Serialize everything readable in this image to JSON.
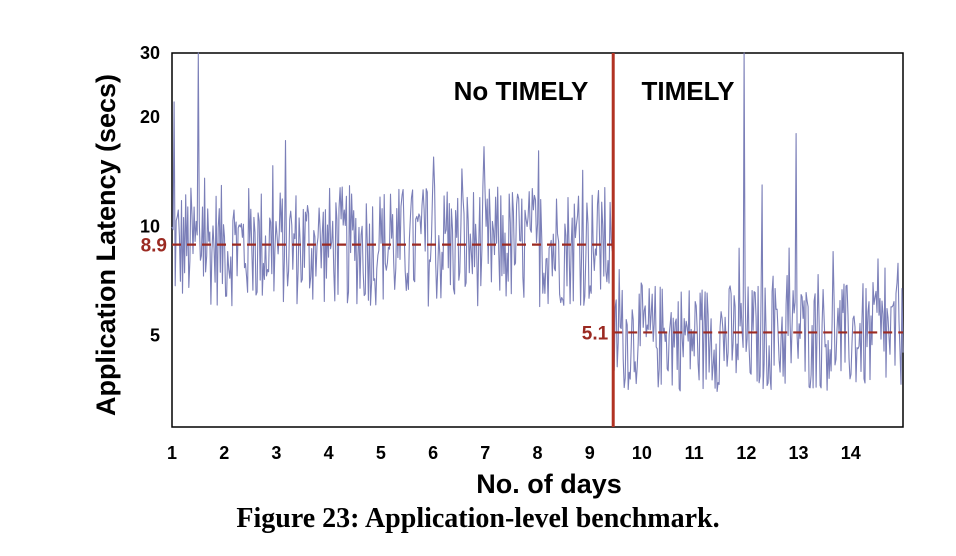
{
  "caption": "Figure 23: Application-level benchmark.",
  "chart_data": {
    "type": "line",
    "xlabel": "No. of days",
    "ylabel": "Application Latency (secs)",
    "xlim": [
      1,
      15
    ],
    "ylim": [
      2.8,
      30
    ],
    "yscale": "log",
    "x_ticks": [
      1,
      2,
      3,
      4,
      5,
      6,
      7,
      8,
      9,
      10,
      11,
      12,
      13,
      14
    ],
    "y_ticks": [
      5,
      10,
      20,
      30
    ],
    "colors": {
      "series": "#7b7fb8",
      "reference": "#9b2a22",
      "divider": "#b13223"
    },
    "regions": [
      {
        "label": "No TIMELY",
        "x_range": [
          1,
          9.45
        ]
      },
      {
        "label": "TIMELY",
        "x_range": [
          9.45,
          15
        ]
      }
    ],
    "divider_x": 9.45,
    "reference_lines": [
      {
        "label": "8.9",
        "y": 8.9,
        "x_range": [
          1,
          9.45
        ]
      },
      {
        "label": "5.1",
        "y": 5.1,
        "x_range": [
          9.45,
          15
        ]
      }
    ],
    "series_summary": {
      "no_timely": {
        "x_range": [
          1,
          9.45
        ],
        "typical_range": [
          6,
          13
        ],
        "spikes": [
          {
            "x": 1.05,
            "y": 22
          },
          {
            "x": 1.5,
            "y": 30
          }
        ]
      },
      "timely": {
        "x_range": [
          9.45,
          15
        ],
        "typical_range": [
          3.5,
          7
        ],
        "spikes": [
          {
            "x": 11.95,
            "y": 30
          },
          {
            "x": 12.95,
            "y": 18
          },
          {
            "x": 12.3,
            "y": 13
          }
        ]
      }
    }
  }
}
